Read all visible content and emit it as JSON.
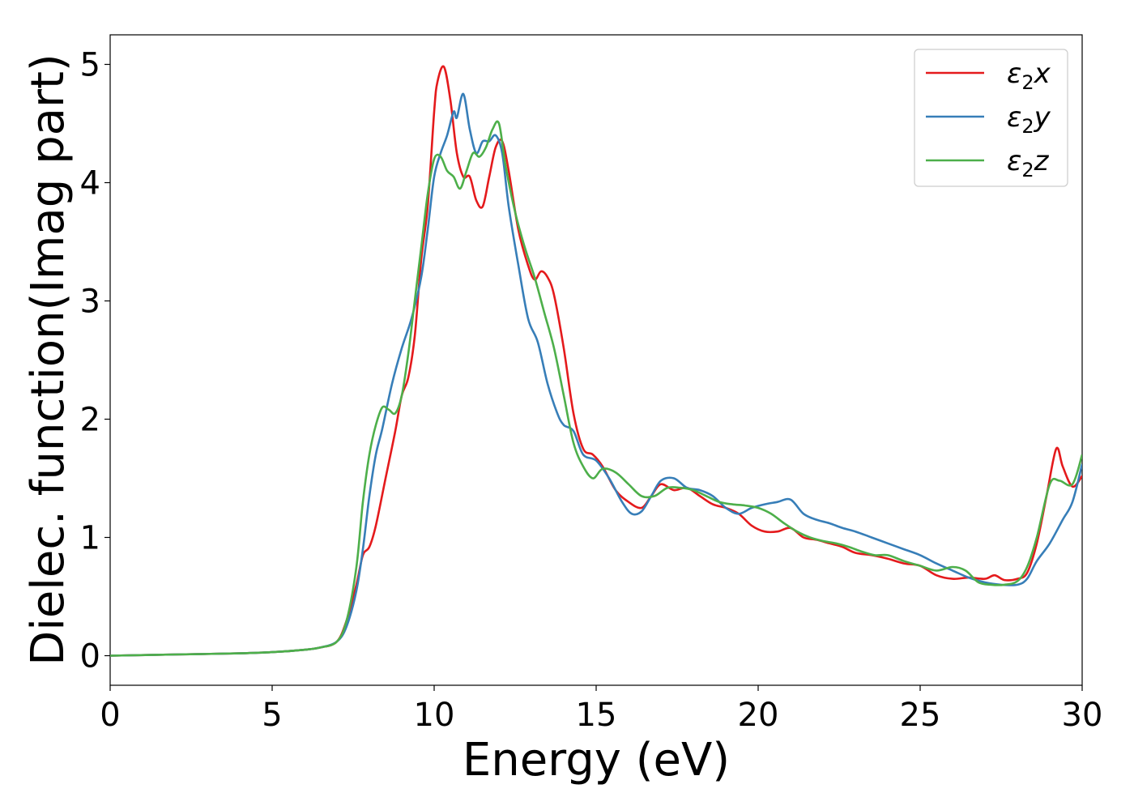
{
  "chart_data": {
    "type": "line",
    "title": "",
    "xlabel": "Energy (eV)",
    "ylabel": "Dielec. function(Imag part)",
    "xlim": [
      0,
      30
    ],
    "ylim": [
      -0.25,
      5.25
    ],
    "xticks": [
      0,
      5,
      10,
      15,
      20,
      25,
      30
    ],
    "yticks": [
      0,
      1,
      2,
      3,
      4,
      5
    ],
    "grid": false,
    "legend_position": "top-right",
    "series": [
      {
        "name": "ε2x",
        "legend_base": "ε",
        "legend_sub": "2",
        "legend_suffix": "x",
        "color": "#e41a1c",
        "points": [
          [
            0,
            0
          ],
          [
            2,
            0.01
          ],
          [
            4,
            0.02
          ],
          [
            5,
            0.03
          ],
          [
            6,
            0.05
          ],
          [
            6.5,
            0.07
          ],
          [
            7,
            0.12
          ],
          [
            7.3,
            0.3
          ],
          [
            7.6,
            0.6
          ],
          [
            7.8,
            0.85
          ],
          [
            8,
            0.92
          ],
          [
            8.2,
            1.1
          ],
          [
            8.5,
            1.5
          ],
          [
            8.8,
            1.9
          ],
          [
            9,
            2.2
          ],
          [
            9.2,
            2.35
          ],
          [
            9.4,
            2.7
          ],
          [
            9.6,
            3.35
          ],
          [
            9.8,
            3.8
          ],
          [
            10,
            4.6
          ],
          [
            10.1,
            4.85
          ],
          [
            10.3,
            4.98
          ],
          [
            10.5,
            4.7
          ],
          [
            10.7,
            4.25
          ],
          [
            10.9,
            4.05
          ],
          [
            11.1,
            4.05
          ],
          [
            11.3,
            3.85
          ],
          [
            11.5,
            3.8
          ],
          [
            11.7,
            4.05
          ],
          [
            11.9,
            4.3
          ],
          [
            12.1,
            4.35
          ],
          [
            12.3,
            4.1
          ],
          [
            12.6,
            3.6
          ],
          [
            12.9,
            3.3
          ],
          [
            13.1,
            3.18
          ],
          [
            13.3,
            3.25
          ],
          [
            13.5,
            3.2
          ],
          [
            13.7,
            3.05
          ],
          [
            14,
            2.6
          ],
          [
            14.3,
            2.05
          ],
          [
            14.6,
            1.75
          ],
          [
            14.9,
            1.7
          ],
          [
            15.2,
            1.6
          ],
          [
            15.6,
            1.4
          ],
          [
            16,
            1.3
          ],
          [
            16.4,
            1.25
          ],
          [
            16.7,
            1.35
          ],
          [
            17,
            1.45
          ],
          [
            17.4,
            1.4
          ],
          [
            17.8,
            1.42
          ],
          [
            18.2,
            1.35
          ],
          [
            18.6,
            1.28
          ],
          [
            19,
            1.25
          ],
          [
            19.4,
            1.2
          ],
          [
            19.8,
            1.1
          ],
          [
            20.2,
            1.05
          ],
          [
            20.6,
            1.05
          ],
          [
            21,
            1.08
          ],
          [
            21.4,
            1.0
          ],
          [
            21.8,
            0.98
          ],
          [
            22.2,
            0.95
          ],
          [
            22.6,
            0.92
          ],
          [
            23,
            0.87
          ],
          [
            23.5,
            0.85
          ],
          [
            24,
            0.82
          ],
          [
            24.5,
            0.78
          ],
          [
            25,
            0.76
          ],
          [
            25.5,
            0.68
          ],
          [
            26,
            0.65
          ],
          [
            26.5,
            0.66
          ],
          [
            27,
            0.65
          ],
          [
            27.3,
            0.68
          ],
          [
            27.6,
            0.64
          ],
          [
            28,
            0.65
          ],
          [
            28.3,
            0.7
          ],
          [
            28.6,
            0.95
          ],
          [
            28.9,
            1.35
          ],
          [
            29.2,
            1.75
          ],
          [
            29.4,
            1.6
          ],
          [
            29.7,
            1.43
          ],
          [
            30,
            1.52
          ]
        ]
      },
      {
        "name": "ε2y",
        "legend_base": "ε",
        "legend_sub": "2",
        "legend_suffix": "y",
        "color": "#377eb8",
        "points": [
          [
            0,
            0
          ],
          [
            2,
            0.01
          ],
          [
            4,
            0.02
          ],
          [
            5,
            0.03
          ],
          [
            6,
            0.05
          ],
          [
            6.5,
            0.07
          ],
          [
            7,
            0.12
          ],
          [
            7.3,
            0.25
          ],
          [
            7.6,
            0.55
          ],
          [
            7.8,
            0.9
          ],
          [
            8,
            1.35
          ],
          [
            8.2,
            1.7
          ],
          [
            8.4,
            1.92
          ],
          [
            8.7,
            2.3
          ],
          [
            9,
            2.6
          ],
          [
            9.3,
            2.85
          ],
          [
            9.6,
            3.2
          ],
          [
            9.8,
            3.6
          ],
          [
            10,
            4.05
          ],
          [
            10.2,
            4.25
          ],
          [
            10.4,
            4.4
          ],
          [
            10.6,
            4.6
          ],
          [
            10.7,
            4.55
          ],
          [
            10.9,
            4.75
          ],
          [
            11.1,
            4.45
          ],
          [
            11.3,
            4.25
          ],
          [
            11.5,
            4.35
          ],
          [
            11.7,
            4.35
          ],
          [
            11.9,
            4.4
          ],
          [
            12.1,
            4.25
          ],
          [
            12.3,
            3.8
          ],
          [
            12.6,
            3.3
          ],
          [
            12.9,
            2.85
          ],
          [
            13.2,
            2.65
          ],
          [
            13.5,
            2.3
          ],
          [
            13.8,
            2.05
          ],
          [
            14,
            1.95
          ],
          [
            14.3,
            1.9
          ],
          [
            14.6,
            1.7
          ],
          [
            15,
            1.65
          ],
          [
            15.4,
            1.5
          ],
          [
            15.8,
            1.3
          ],
          [
            16.1,
            1.2
          ],
          [
            16.4,
            1.22
          ],
          [
            16.7,
            1.35
          ],
          [
            17,
            1.48
          ],
          [
            17.4,
            1.5
          ],
          [
            17.8,
            1.42
          ],
          [
            18.2,
            1.4
          ],
          [
            18.6,
            1.35
          ],
          [
            19,
            1.25
          ],
          [
            19.4,
            1.2
          ],
          [
            19.8,
            1.25
          ],
          [
            20.2,
            1.28
          ],
          [
            20.6,
            1.3
          ],
          [
            21,
            1.32
          ],
          [
            21.4,
            1.2
          ],
          [
            21.8,
            1.15
          ],
          [
            22.2,
            1.12
          ],
          [
            22.6,
            1.08
          ],
          [
            23,
            1.05
          ],
          [
            23.5,
            1.0
          ],
          [
            24,
            0.95
          ],
          [
            24.5,
            0.9
          ],
          [
            25,
            0.85
          ],
          [
            25.5,
            0.78
          ],
          [
            26,
            0.72
          ],
          [
            26.5,
            0.66
          ],
          [
            27,
            0.62
          ],
          [
            27.5,
            0.6
          ],
          [
            28,
            0.6
          ],
          [
            28.3,
            0.65
          ],
          [
            28.6,
            0.8
          ],
          [
            29,
            0.95
          ],
          [
            29.4,
            1.15
          ],
          [
            29.7,
            1.3
          ],
          [
            30,
            1.62
          ]
        ]
      },
      {
        "name": "ε2z",
        "legend_base": "ε",
        "legend_sub": "2",
        "legend_suffix": "z",
        "color": "#4daf4a",
        "points": [
          [
            0,
            0
          ],
          [
            2,
            0.01
          ],
          [
            4,
            0.02
          ],
          [
            5,
            0.03
          ],
          [
            6,
            0.05
          ],
          [
            6.5,
            0.07
          ],
          [
            7,
            0.12
          ],
          [
            7.3,
            0.3
          ],
          [
            7.6,
            0.75
          ],
          [
            7.8,
            1.3
          ],
          [
            8,
            1.7
          ],
          [
            8.2,
            1.95
          ],
          [
            8.4,
            2.1
          ],
          [
            8.6,
            2.08
          ],
          [
            8.8,
            2.05
          ],
          [
            9,
            2.2
          ],
          [
            9.2,
            2.55
          ],
          [
            9.4,
            3.0
          ],
          [
            9.6,
            3.45
          ],
          [
            9.8,
            3.9
          ],
          [
            10,
            4.2
          ],
          [
            10.2,
            4.22
          ],
          [
            10.4,
            4.1
          ],
          [
            10.6,
            4.05
          ],
          [
            10.8,
            3.95
          ],
          [
            11,
            4.1
          ],
          [
            11.2,
            4.25
          ],
          [
            11.4,
            4.22
          ],
          [
            11.6,
            4.3
          ],
          [
            11.8,
            4.45
          ],
          [
            12,
            4.5
          ],
          [
            12.2,
            4.15
          ],
          [
            12.5,
            3.75
          ],
          [
            12.8,
            3.45
          ],
          [
            13.1,
            3.2
          ],
          [
            13.4,
            2.9
          ],
          [
            13.7,
            2.6
          ],
          [
            14,
            2.2
          ],
          [
            14.3,
            1.8
          ],
          [
            14.6,
            1.6
          ],
          [
            14.9,
            1.5
          ],
          [
            15.2,
            1.58
          ],
          [
            15.6,
            1.55
          ],
          [
            16,
            1.45
          ],
          [
            16.4,
            1.35
          ],
          [
            16.8,
            1.35
          ],
          [
            17.2,
            1.42
          ],
          [
            17.6,
            1.42
          ],
          [
            18,
            1.4
          ],
          [
            18.4,
            1.35
          ],
          [
            18.8,
            1.3
          ],
          [
            19.2,
            1.28
          ],
          [
            19.6,
            1.27
          ],
          [
            20,
            1.25
          ],
          [
            20.4,
            1.2
          ],
          [
            20.8,
            1.12
          ],
          [
            21.2,
            1.05
          ],
          [
            21.6,
            1.0
          ],
          [
            22,
            0.97
          ],
          [
            22.4,
            0.95
          ],
          [
            22.8,
            0.92
          ],
          [
            23.2,
            0.88
          ],
          [
            23.6,
            0.85
          ],
          [
            24,
            0.85
          ],
          [
            24.5,
            0.8
          ],
          [
            25,
            0.76
          ],
          [
            25.5,
            0.72
          ],
          [
            26,
            0.75
          ],
          [
            26.4,
            0.72
          ],
          [
            26.8,
            0.62
          ],
          [
            27.2,
            0.6
          ],
          [
            27.6,
            0.6
          ],
          [
            28,
            0.63
          ],
          [
            28.3,
            0.75
          ],
          [
            28.6,
            1.0
          ],
          [
            29,
            1.45
          ],
          [
            29.3,
            1.48
          ],
          [
            29.7,
            1.45
          ],
          [
            30,
            1.7
          ]
        ]
      }
    ]
  }
}
